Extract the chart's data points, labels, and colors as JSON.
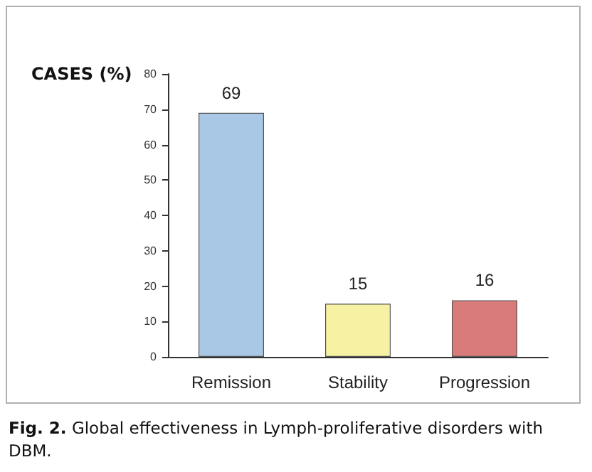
{
  "chart_data": {
    "type": "bar",
    "title": "Fig. 2.",
    "subtitle": "Global effectiveness in Lymph-proliferative disorders with DBM.",
    "ylabel": "CASES (%)",
    "categories": [
      "Remission",
      "Stability",
      "Progression"
    ],
    "values": [
      69,
      15,
      16
    ],
    "colors": [
      "#a9c8e6",
      "#f7f1a3",
      "#d87b7a"
    ],
    "ylim": [
      0,
      80
    ],
    "yticks": [
      0,
      10,
      20,
      30,
      40,
      50,
      60,
      70,
      80
    ],
    "data_labels": true
  }
}
